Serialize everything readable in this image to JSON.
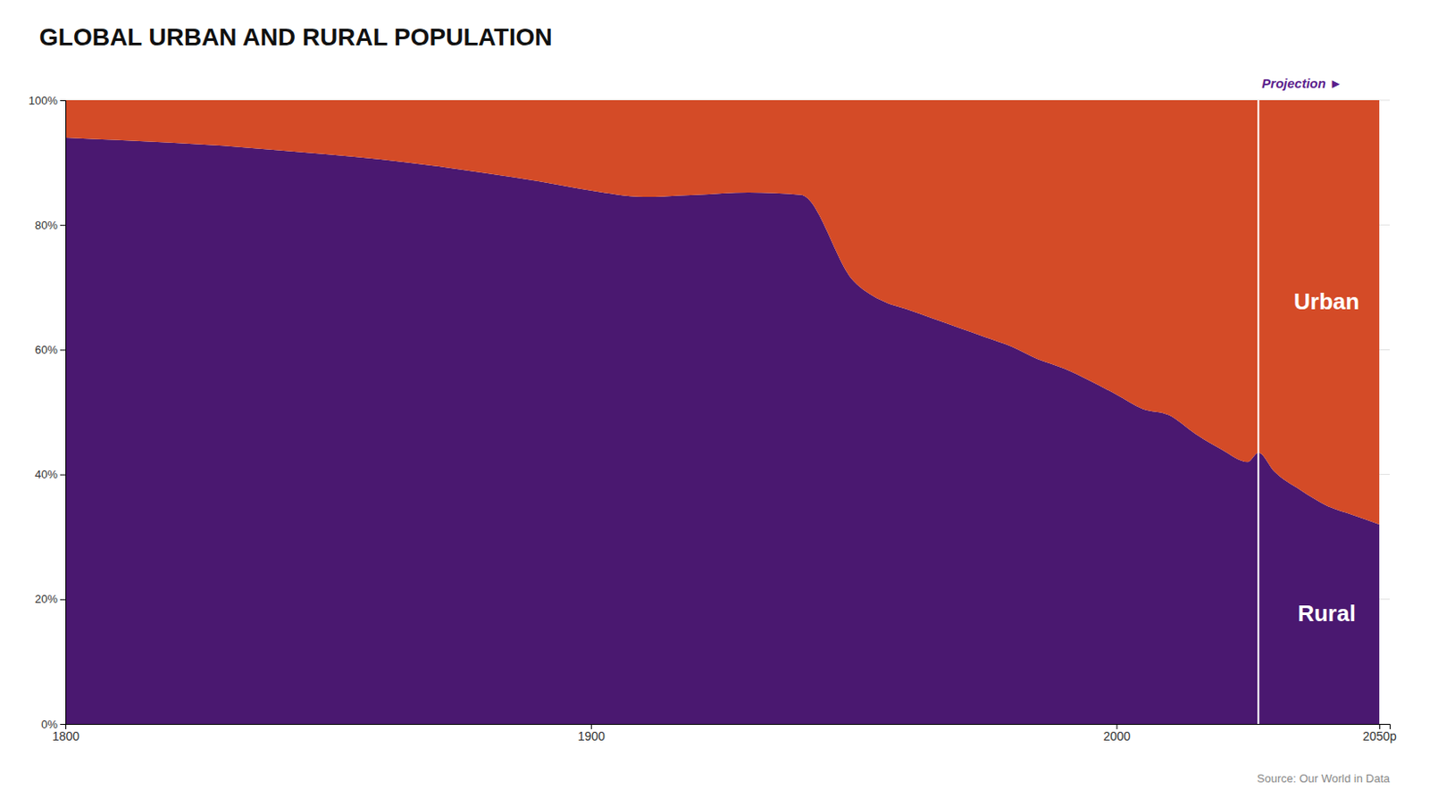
{
  "chart_data": {
    "type": "area",
    "title": "GLOBAL URBAN AND RURAL POPULATION",
    "x": [
      1800,
      1810,
      1820,
      1830,
      1840,
      1850,
      1860,
      1870,
      1880,
      1890,
      1900,
      1910,
      1920,
      1930,
      1940,
      1950,
      1955,
      1960,
      1965,
      1970,
      1975,
      1980,
      1985,
      1990,
      1995,
      2000,
      2005,
      2010,
      2015,
      2020,
      2025,
      2027,
      2030,
      2035,
      2040,
      2045,
      2050
    ],
    "series": [
      {
        "name": "Rural",
        "color": "#4A1870",
        "values": [
          94.0,
          93.6,
          93.2,
          92.7,
          92.0,
          91.3,
          90.5,
          89.5,
          88.3,
          87.0,
          85.5,
          84.5,
          84.8,
          85.2,
          84.8,
          71.0,
          68.0,
          66.5,
          65.0,
          63.5,
          62.0,
          60.5,
          58.5,
          57.0,
          55.0,
          52.8,
          50.5,
          49.5,
          46.5,
          44.0,
          42.0,
          43.5,
          40.5,
          37.5,
          35.0,
          33.5,
          32.0
        ]
      },
      {
        "name": "Urban",
        "color": "#D44B27",
        "values": [
          6.0,
          6.4,
          6.8,
          7.3,
          8.0,
          8.7,
          9.5,
          10.5,
          11.7,
          13.0,
          14.5,
          15.5,
          15.2,
          14.8,
          15.2,
          29.0,
          32.0,
          33.5,
          35.0,
          36.5,
          38.0,
          39.5,
          41.5,
          43.0,
          45.0,
          47.2,
          49.5,
          50.5,
          53.5,
          56.0,
          58.0,
          56.5,
          59.5,
          62.5,
          65.0,
          66.5,
          68.0
        ]
      }
    ],
    "stacked": true,
    "xlim": [
      1800,
      2052
    ],
    "xticks": [
      1800,
      1900,
      2000,
      {
        "value": 2050,
        "label": "2050p"
      }
    ],
    "ylim": [
      0,
      100
    ],
    "yticks": [
      {
        "value": 0,
        "label": "0%"
      },
      {
        "value": 20,
        "label": "20%"
      },
      {
        "value": 40,
        "label": "40%"
      },
      {
        "value": 60,
        "label": "60%"
      },
      {
        "value": 80,
        "label": "80%"
      },
      {
        "value": 100,
        "label": "100%"
      }
    ],
    "grid": true,
    "annotations": [
      {
        "text": "Projection ►",
        "x": 2027
      }
    ],
    "source": "Source: Our World in Data"
  }
}
